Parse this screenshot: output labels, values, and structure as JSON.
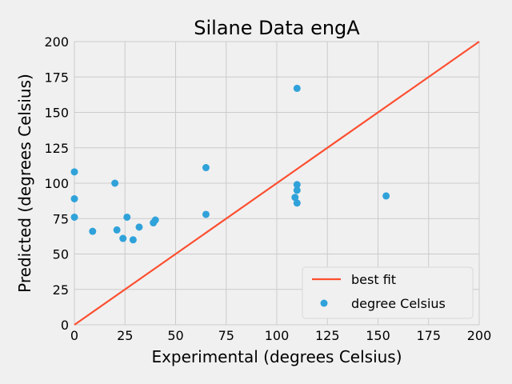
{
  "chart_data": {
    "type": "scatter",
    "title": "Silane Data engA",
    "xlabel": "Experimental (degrees Celsius)",
    "ylabel": "Predicted (degrees Celsius)",
    "xlim": [
      0,
      200
    ],
    "ylim": [
      0,
      200
    ],
    "xticks": [
      0,
      25,
      50,
      75,
      100,
      125,
      150,
      175,
      200
    ],
    "yticks": [
      0,
      25,
      50,
      75,
      100,
      125,
      150,
      175,
      200
    ],
    "grid": true,
    "legend_position": "lower-right",
    "series": [
      {
        "name": "best fit",
        "kind": "line",
        "color": "#fc4f30",
        "points": [
          [
            0,
            0
          ],
          [
            200,
            200
          ]
        ]
      },
      {
        "name": "degree Celsius",
        "kind": "scatter",
        "color": "#30a2da",
        "points": [
          [
            0,
            108
          ],
          [
            0,
            89
          ],
          [
            0,
            76
          ],
          [
            9,
            66
          ],
          [
            20,
            100
          ],
          [
            21,
            67
          ],
          [
            24,
            61
          ],
          [
            26,
            76
          ],
          [
            29,
            60
          ],
          [
            32,
            69
          ],
          [
            39,
            72
          ],
          [
            40,
            74
          ],
          [
            65,
            111
          ],
          [
            65,
            78
          ],
          [
            110,
            167
          ],
          [
            110,
            99
          ],
          [
            110,
            95
          ],
          [
            109,
            90
          ],
          [
            110,
            86
          ],
          [
            154,
            91
          ]
        ]
      }
    ]
  }
}
